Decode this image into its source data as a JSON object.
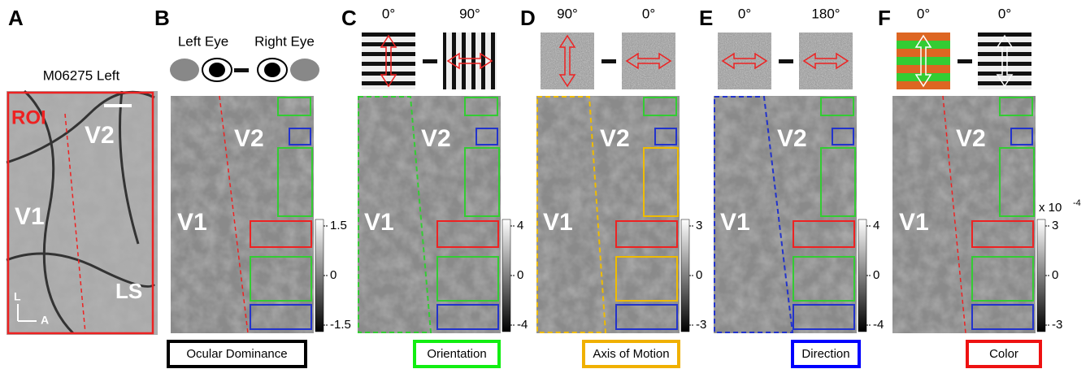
{
  "panels": [
    {
      "letter": "A",
      "title": "M06275 Left",
      "labels": [
        "ROI",
        "V2",
        "V1",
        "LS"
      ],
      "axis": [
        "L",
        "A"
      ]
    },
    {
      "letter": "B",
      "stimulus": [
        "Left Eye",
        "Right Eye"
      ],
      "areas": [
        "V2",
        "V1"
      ],
      "colorbar": [
        "1.5",
        "0",
        "-1.5"
      ],
      "caption": "Ocular Dominance"
    },
    {
      "letter": "C",
      "stimulus": [
        "0°",
        "90°"
      ],
      "areas": [
        "V2",
        "V1"
      ],
      "colorbar": [
        "4",
        "0",
        "-4"
      ],
      "caption": "Orientation"
    },
    {
      "letter": "D",
      "stimulus": [
        "90°",
        "0°"
      ],
      "areas": [
        "V2",
        "V1"
      ],
      "colorbar": [
        "3",
        "0",
        "-3"
      ],
      "caption": "Axis of Motion"
    },
    {
      "letter": "E",
      "stimulus": [
        "0°",
        "180°"
      ],
      "areas": [
        "V2",
        "V1"
      ],
      "colorbar": [
        "4",
        "0",
        "-4"
      ],
      "caption": "Direction"
    },
    {
      "letter": "F",
      "stimulus": [
        "0°",
        "0°"
      ],
      "areas": [
        "V2",
        "V1"
      ],
      "colorbar": [
        "3",
        "0",
        "-3"
      ],
      "scale": "x 10",
      "exponent": "-4",
      "caption": "Color"
    }
  ]
}
